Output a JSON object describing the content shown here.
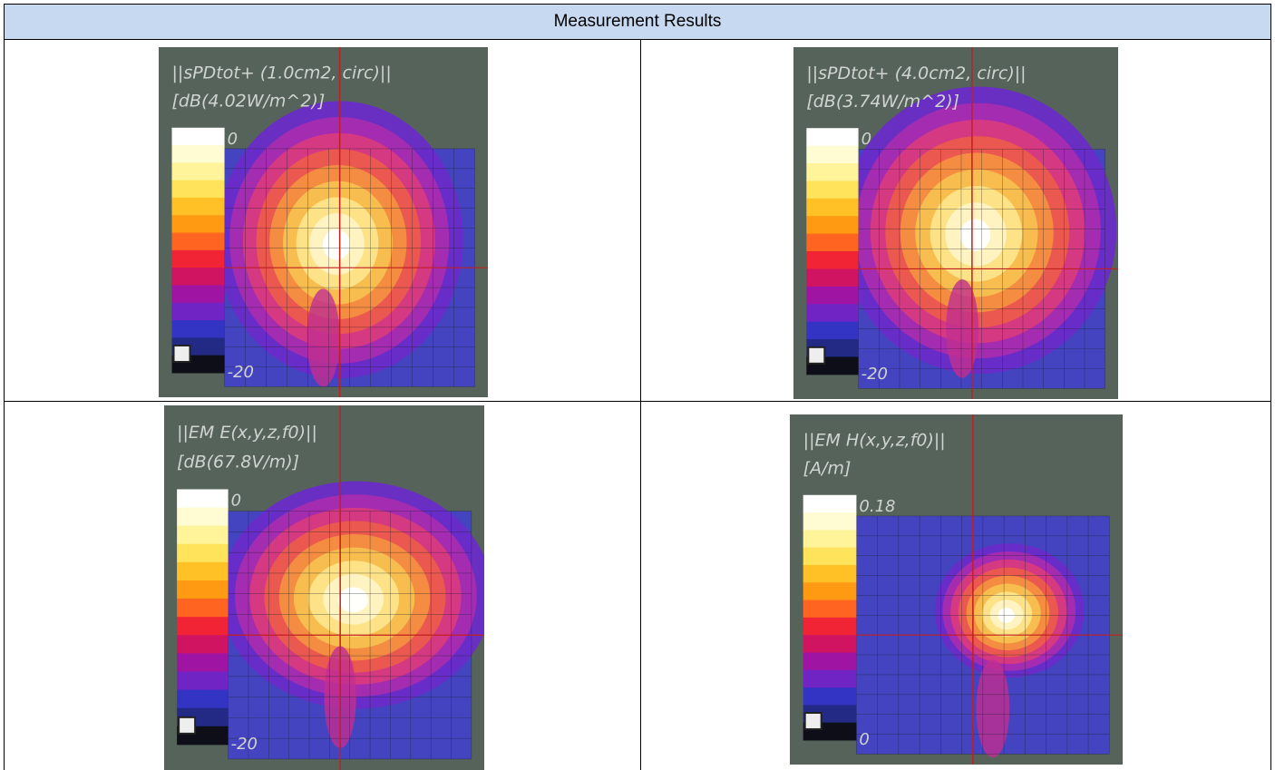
{
  "table": {
    "header": "Measurement Results",
    "cells": [
      [
        {
          "title": "||sPDtot+ (1.0cm2, circ)||",
          "unit": "[dB(4.02W/m^2)]",
          "max": 0,
          "min": -20
        },
        {
          "title": "||sPDtot+ (4.0cm2, circ)||",
          "unit": "[dB(3.74W/m^2)]",
          "max": 0,
          "min": -20
        }
      ],
      [
        {
          "title": "||EM E(x,y,z,f0)||",
          "unit": "[dB(67.8V/m)]",
          "max": 0,
          "min": -20
        },
        {
          "title": "||EM H(x,y,z,f0)||",
          "unit": "[A/m]",
          "max": 0.18,
          "min": 0
        }
      ]
    ]
  }
}
